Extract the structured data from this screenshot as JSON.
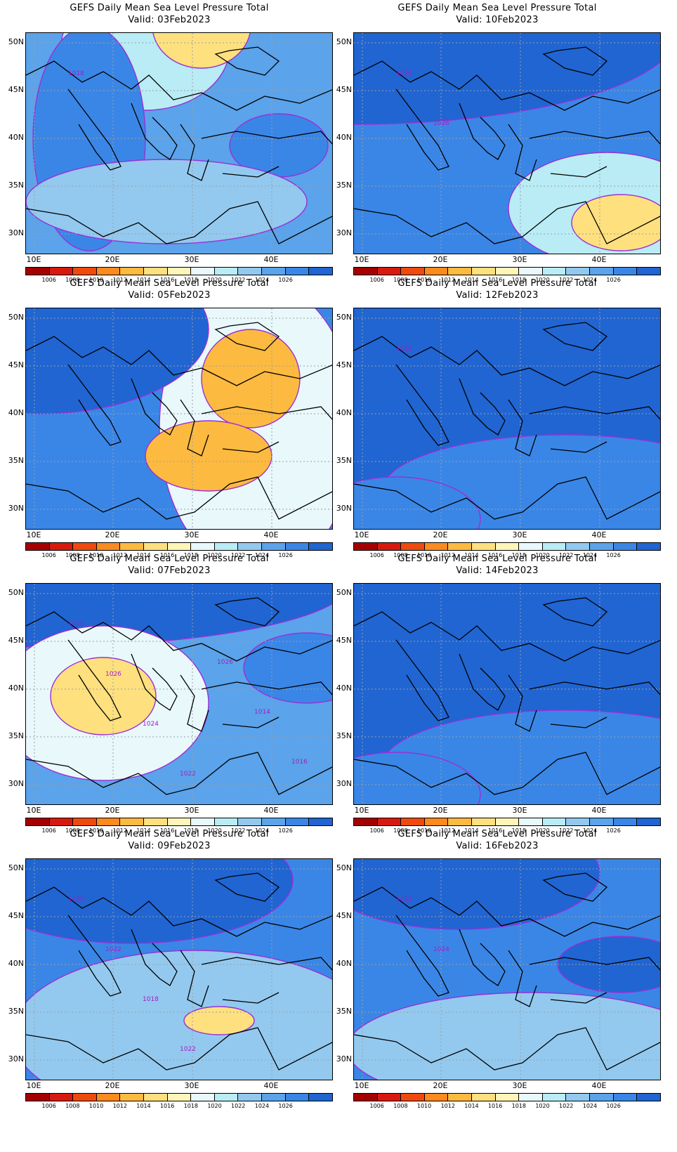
{
  "title_prefix": "GEFS Daily Mean Sea Level Pressure Total",
  "panels": [
    {
      "title": "GEFS Daily Mean Sea Level Pressure Total",
      "valid": "Valid: 03Feb2023",
      "contour_labels": [
        "1018"
      ],
      "regime": "mixed-low-north"
    },
    {
      "title": "GEFS Daily Mean Sea Level Pressure Total",
      "valid": "Valid: 10Feb2023",
      "contour_labels": [
        "1026",
        "1026"
      ],
      "regime": "high-north-low-southeast"
    },
    {
      "title": "GEFS Daily Mean Sea Level Pressure Total",
      "valid": "Valid: 05Feb2023",
      "contour_labels": [],
      "regime": "low-east"
    },
    {
      "title": "GEFS Daily Mean Sea Level Pressure Total",
      "valid": "Valid: 12Feb2023",
      "contour_labels": [
        "1026"
      ],
      "regime": "high"
    },
    {
      "title": "GEFS Daily Mean Sea Level Pressure Total",
      "valid": "Valid: 07Feb2023",
      "contour_labels": [
        "1026",
        "1026",
        "1024",
        "1022",
        "1026",
        "1014",
        "1016"
      ],
      "regime": "low-southwest"
    },
    {
      "title": "GEFS Daily Mean Sea Level Pressure Total",
      "valid": "Valid: 14Feb2023",
      "contour_labels": [],
      "regime": "high"
    },
    {
      "title": "GEFS Daily Mean Sea Level Pressure Total",
      "valid": "Valid: 09Feb2023",
      "contour_labels": [
        "1026",
        "1022",
        "1018",
        "1022"
      ],
      "regime": "low-center"
    },
    {
      "title": "GEFS Daily Mean Sea Level Pressure Total",
      "valid": "Valid: 16Feb2023",
      "contour_labels": [
        "1024",
        "1024"
      ],
      "regime": "mixed-high"
    }
  ],
  "axes": {
    "y_ticks": [
      "50N",
      "45N",
      "40N",
      "35N",
      "30N"
    ],
    "x_ticks": [
      "10E",
      "20E",
      "30E",
      "40E"
    ]
  },
  "colorbar": {
    "labels": [
      "1006",
      "1008",
      "1010",
      "1012",
      "1014",
      "1016",
      "1018",
      "1020",
      "1022",
      "1024",
      "1026"
    ],
    "colors": [
      "#a50000",
      "#d81a0e",
      "#ef4a0d",
      "#fb8a1f",
      "#fdba40",
      "#fee07f",
      "#fff5b8",
      "#e9f8fb",
      "#b9ecf5",
      "#93c9ef",
      "#5ba3ea",
      "#3a86e6",
      "#2065d2"
    ]
  }
}
